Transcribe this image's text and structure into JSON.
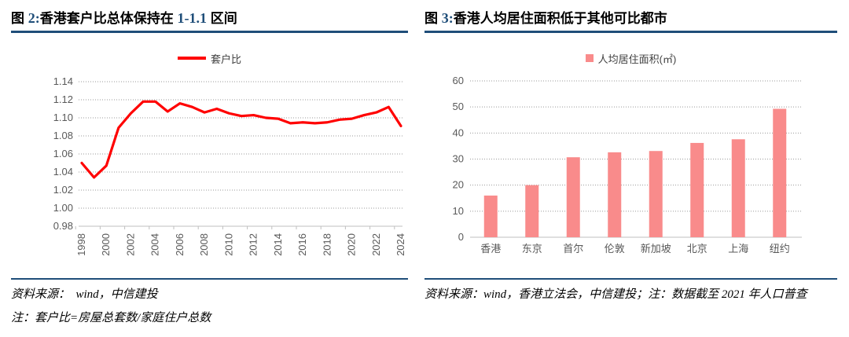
{
  "colors": {
    "navy": "#1F4E79",
    "line_red": "#FF0000",
    "bar_pink": "#F98B8B",
    "axis_text": "#595959",
    "grid": "#999999",
    "axis_line": "#BFBFBF"
  },
  "figure2": {
    "title_fig": "图 ",
    "title_no": "2:",
    "title_a": "香港套户比总体保持在 ",
    "title_b": "1-1.1",
    "title_c": " 区间",
    "legend_label": "套户比",
    "source": "资料来源：  wind，中信建投",
    "note": "注：套户比=房屋总套数/家庭住户总数"
  },
  "figure3": {
    "title_fig": "图 ",
    "title_no": "3:",
    "title_a": "香港人均居住面积低于其他可比都市",
    "legend_label": "人均居住面积(㎡)",
    "source": "资料来源：wind，香港立法会，中信建投；注：数据截至 2021 年人口普查"
  },
  "chart_data": [
    {
      "type": "line",
      "title": "图 2:香港套户比总体保持在 1-1.1 区间",
      "legend": [
        "套户比"
      ],
      "legend_position": "top",
      "grid": true,
      "x": [
        1998,
        1999,
        2000,
        2001,
        2002,
        2003,
        2004,
        2005,
        2006,
        2007,
        2008,
        2009,
        2010,
        2011,
        2012,
        2013,
        2014,
        2015,
        2016,
        2017,
        2018,
        2019,
        2020,
        2021,
        2022,
        2023,
        2024
      ],
      "series": [
        {
          "name": "套户比",
          "values": [
            1.05,
            1.034,
            1.047,
            1.089,
            1.105,
            1.118,
            1.118,
            1.107,
            1.116,
            1.112,
            1.106,
            1.11,
            1.105,
            1.102,
            1.103,
            1.1,
            1.099,
            1.094,
            1.095,
            1.094,
            1.095,
            1.098,
            1.099,
            1.103,
            1.106,
            1.112,
            1.091
          ]
        }
      ],
      "ylim": [
        0.98,
        1.14
      ],
      "ytick_step": 0.02,
      "xtick_every": 2,
      "line_color": "#FF0000"
    },
    {
      "type": "bar",
      "title": "图 3:香港人均居住面积低于其他可比都市",
      "legend": [
        "人均居住面积(㎡)"
      ],
      "legend_position": "top",
      "grid": true,
      "categories": [
        "香港",
        "东京",
        "首尔",
        "伦敦",
        "新加坡",
        "北京",
        "上海",
        "纽约"
      ],
      "values": [
        16,
        20,
        30.7,
        32.6,
        33.1,
        36.2,
        37.6,
        49.3
      ],
      "ylim": [
        0,
        60
      ],
      "yticks": [
        0,
        10,
        20,
        30,
        40,
        50,
        60
      ],
      "bar_color": "#F98B8B"
    }
  ]
}
